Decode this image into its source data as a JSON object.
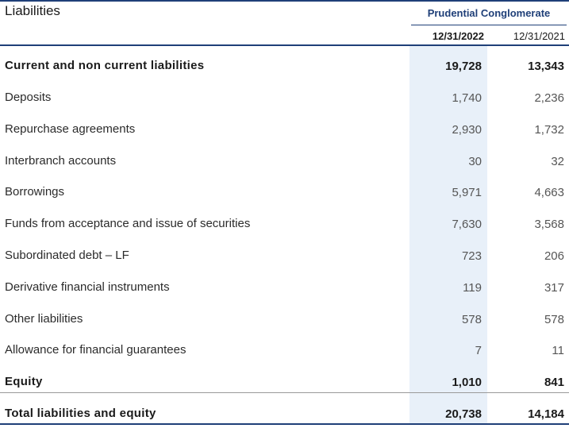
{
  "title": "Liabilities",
  "company": "Prudential Conglomerate",
  "columns": [
    "12/31/2022",
    "12/31/2021"
  ],
  "rows": [
    {
      "label": "Current and non current liabilities",
      "v2022": "19,728",
      "v2021": "13,343",
      "bold": true
    },
    {
      "label": "Deposits",
      "v2022": "1,740",
      "v2021": "2,236"
    },
    {
      "label": "Repurchase agreements",
      "v2022": "2,930",
      "v2021": "1,732"
    },
    {
      "label": "Interbranch accounts",
      "v2022": "30",
      "v2021": "32"
    },
    {
      "label": "Borrowings",
      "v2022": "5,971",
      "v2021": "4,663"
    },
    {
      "label": "Funds from acceptance and issue of securities",
      "v2022": "7,630",
      "v2021": "3,568"
    },
    {
      "label": "Subordinated debt – LF",
      "v2022": "723",
      "v2021": "206"
    },
    {
      "label": "Derivative financial instruments",
      "v2022": "119",
      "v2021": "317"
    },
    {
      "label": "Other liabilities",
      "v2022": "578",
      "v2021": "578"
    },
    {
      "label": "Allowance for financial guarantees",
      "v2022": "7",
      "v2021": "11"
    },
    {
      "label": "Equity",
      "v2022": "1,010",
      "v2021": "841",
      "bold": true
    },
    {
      "label": "Total liabilities and equity",
      "v2022": "20,738",
      "v2021": "14,184",
      "bold": true
    }
  ],
  "colors": {
    "accent": "#1f3f78",
    "highlight_column": "#e8f0f9"
  }
}
